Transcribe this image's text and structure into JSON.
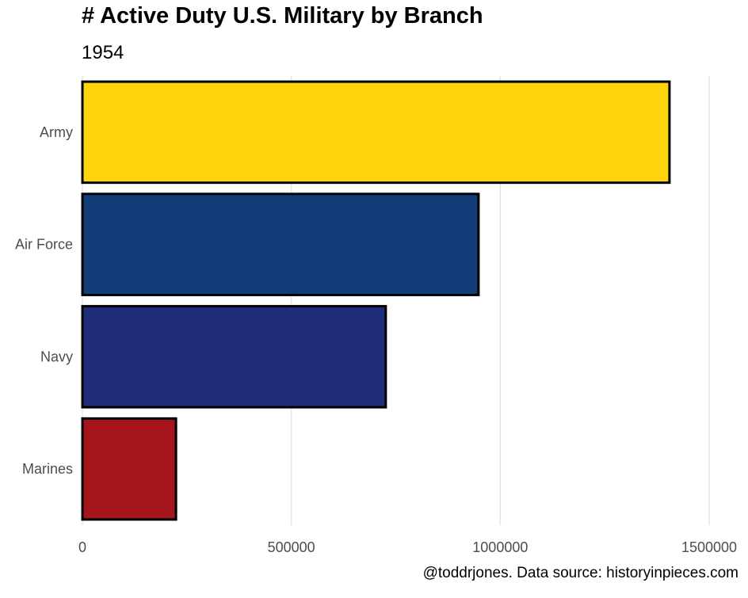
{
  "chart_data": {
    "type": "bar",
    "orientation": "horizontal",
    "title": "# Active Duty U.S. Military by Branch",
    "subtitle": "1954",
    "caption": "@toddrjones. Data source: historyinpieces.com",
    "categories": [
      "Army",
      "Air Force",
      "Navy",
      "Marines"
    ],
    "values": [
      1405000,
      948000,
      726000,
      224000
    ],
    "colors": [
      "#FFD30B",
      "#123D79",
      "#202D7B",
      "#A4151C"
    ],
    "bar_outline": "#000000",
    "xlim": [
      0,
      1500000
    ],
    "xticks": [
      0,
      500000,
      1000000,
      1500000
    ],
    "xtick_labels": [
      "0",
      "500000",
      "1000000",
      "1500000"
    ],
    "xlabel": "",
    "ylabel": "",
    "grid": "vertical",
    "grid_color": "#e5e5e5",
    "legend": "none"
  }
}
